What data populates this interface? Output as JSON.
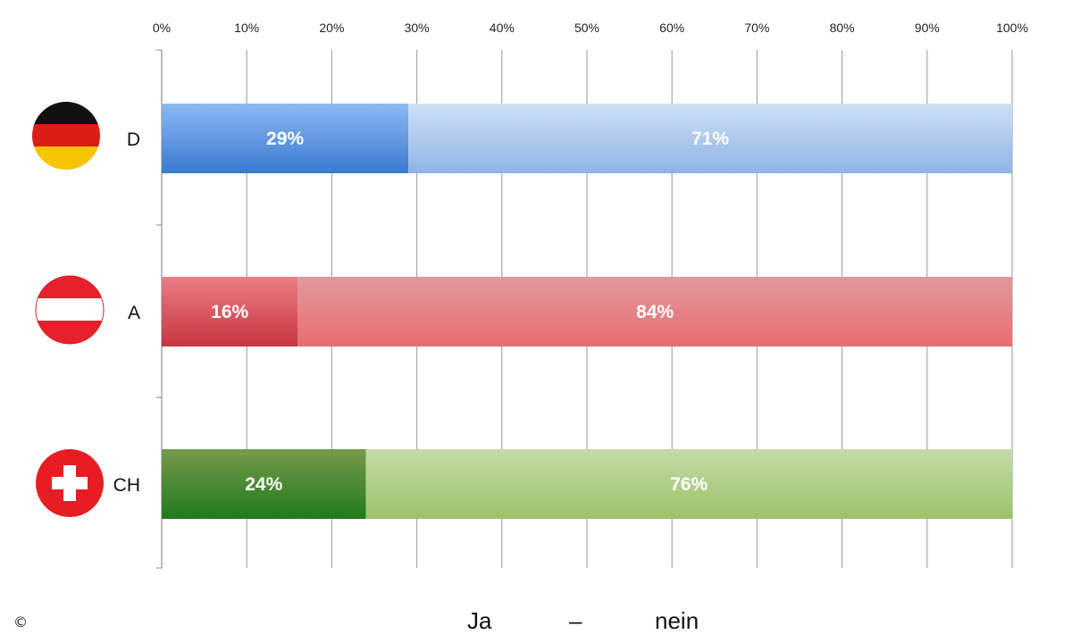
{
  "chart_data": {
    "type": "bar",
    "orientation": "horizontal",
    "stacked": true,
    "percent_axis": true,
    "categories": [
      "D",
      "A",
      "CH"
    ],
    "series": [
      {
        "name": "Ja",
        "values": [
          29,
          16,
          24
        ]
      },
      {
        "name": "nein",
        "values": [
          71,
          84,
          76
        ]
      }
    ],
    "data_labels": [
      [
        "29%",
        "71%"
      ],
      [
        "16%",
        "84%"
      ],
      [
        "24%",
        "76%"
      ]
    ],
    "xlim": [
      0,
      100
    ],
    "x_ticks": [
      "0%",
      "10%",
      "20%",
      "30%",
      "40%",
      "50%",
      "60%",
      "70%",
      "80%",
      "90%",
      "100%"
    ],
    "x_axis_position": "top",
    "grid": true,
    "category_icons": [
      "germany-flag-icon",
      "austria-flag-icon",
      "switzerland-flag-icon"
    ],
    "colors": {
      "D": [
        "#3f7fd6",
        "#a9c6ee"
      ],
      "A": [
        "#d2454e",
        "#e77b81"
      ],
      "CH": [
        "#3d8a2a",
        "#a9cc80"
      ]
    }
  },
  "legend": {
    "ja": "Ja",
    "separator": "–",
    "nein": "nein"
  },
  "copyright_symbol": "©"
}
